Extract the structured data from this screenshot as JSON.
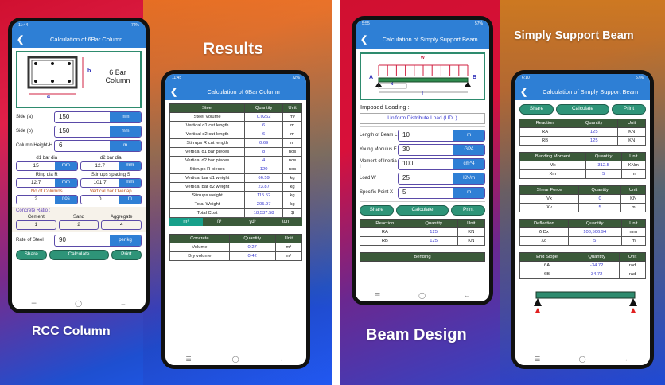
{
  "promo": {
    "results": "Results",
    "rcc": "RCC Column",
    "beam_design": "Beam Design",
    "ssb": "Simply Support Beam"
  },
  "phone1": {
    "status_time": "11:44",
    "battery": "72%",
    "title": "Calculation of 6Bar Column",
    "diagram": {
      "label": "6 Bar Column",
      "a": "a",
      "b": "b",
      "d1": "d1",
      "d2": "d2",
      "r": "R"
    },
    "side_a": {
      "label": "Side (a)",
      "value": "150",
      "unit": "mm"
    },
    "side_b": {
      "label": "Side (b)",
      "value": "150",
      "unit": "mm"
    },
    "height": {
      "label": "Column Height-H",
      "value": "6",
      "unit": "m"
    },
    "d1": {
      "label": "d1 bar dia",
      "value": "15",
      "unit": "mm"
    },
    "d2": {
      "label": "d2 bar dia",
      "value": "12.7",
      "unit": "mm"
    },
    "ring": {
      "label": "Ring dia R",
      "value": "12.7",
      "unit": "mm"
    },
    "stirrups": {
      "label": "Stirrups spacing S",
      "value": "101.7",
      "unit": "mm"
    },
    "columns": {
      "label": "No of Columns",
      "value": "2",
      "unit": "nos"
    },
    "overlap": {
      "label": "Vertical bar Overlap",
      "value": "0",
      "unit": "m"
    },
    "ratio": {
      "label": "Concrete Ratio :",
      "cement": "Cement",
      "sand": "Sand",
      "aggregate": "Aggregate",
      "cement_v": "1",
      "sand_v": "2",
      "aggregate_v": "4"
    },
    "rate": {
      "label": "Rate of Steel",
      "value": "90",
      "unit": "per kg"
    },
    "buttons": {
      "share": "Share",
      "calculate": "Calculate",
      "print": "Print"
    }
  },
  "phone2": {
    "status_time": "11:45",
    "battery": "72%",
    "title": "Calculation of 6Bar Column",
    "steel_headers": [
      "Steel",
      "Quantity",
      "Unit"
    ],
    "steel_rows": [
      [
        "Steel Volume",
        "0.0262",
        "m³"
      ],
      [
        "Vertical d1 cut length",
        "6",
        "m"
      ],
      [
        "Vertical d2 cut length",
        "6",
        "m"
      ],
      [
        "Stirrups R cut length",
        "0.69",
        "m"
      ],
      [
        "Vertical d1 bar pieces",
        "8",
        "nos"
      ],
      [
        "Vertical d2 bar pieces",
        "4",
        "nos"
      ],
      [
        "Stirrups R pieces",
        "120",
        "nos"
      ],
      [
        "Vertical bar d1 weight",
        "66.59",
        "kg"
      ],
      [
        "Vertical bar d2 weight",
        "23.87",
        "kg"
      ],
      [
        "Stirrups weight",
        "115.52",
        "kg"
      ],
      [
        "Total Weight",
        "205.97",
        "kg"
      ],
      [
        "Total Cost",
        "18,537.58",
        "$"
      ]
    ],
    "unit_tabs": [
      "m³",
      "ft³",
      "yd³",
      "ton"
    ],
    "concrete_headers": [
      "Concrete",
      "Quantity",
      "Unit"
    ],
    "concrete_rows": [
      [
        "Volume",
        "0.27",
        "m³"
      ],
      [
        "Dry volume",
        "0.42",
        "m³"
      ]
    ]
  },
  "phone3": {
    "status_time": "5:55",
    "battery": "57%",
    "title": "Calculation of Simply Support Beam",
    "diagram": {
      "w": "w",
      "a": "A",
      "b": "B",
      "x": "x",
      "l": "L"
    },
    "imposed_label": "Imposed Loading :",
    "imposed_value": "Uniform Distribute Load (UDL)",
    "inputs": [
      {
        "label": "Length of Beam L",
        "value": "10",
        "unit": "m"
      },
      {
        "label": "Young Modulus E",
        "value": "30",
        "unit": "GPA"
      },
      {
        "label": "Moment of Inertia I",
        "value": "100",
        "unit": "cm^4"
      },
      {
        "label": "Load W",
        "value": "25",
        "unit": "KN/m"
      },
      {
        "label": "Specific Point X",
        "value": "5",
        "unit": "m"
      }
    ],
    "buttons": {
      "share": "Share",
      "calculate": "Calculate",
      "print": "Print"
    },
    "reaction_headers": [
      "Reaction",
      "Quantity",
      "Unit"
    ],
    "reaction_rows": [
      [
        "RA",
        "125",
        "KN"
      ],
      [
        "RB",
        "125",
        "KN"
      ]
    ],
    "next_header": "Bending"
  },
  "phone4": {
    "status_time": "6:10",
    "battery": "57%",
    "title": "Calculation of Simply Support Beam",
    "buttons": {
      "share": "Share",
      "calculate": "Calculate",
      "print": "Print"
    },
    "tables": [
      {
        "headers": [
          "Reaction",
          "Quantity",
          "Unit"
        ],
        "rows": [
          [
            "RA",
            "125",
            "KN"
          ],
          [
            "RB",
            "125",
            "KN"
          ]
        ]
      },
      {
        "headers": [
          "Bending Moment",
          "Quantity",
          "Unit"
        ],
        "rows": [
          [
            "Mx",
            "312.5",
            "KNm"
          ],
          [
            "Xm",
            "5",
            "m"
          ]
        ]
      },
      {
        "headers": [
          "Shear Force",
          "Quantity",
          "Unit"
        ],
        "rows": [
          [
            "Vx",
            "0",
            "KN"
          ],
          [
            "Xv",
            "5",
            "m"
          ]
        ]
      },
      {
        "headers": [
          "Deflection",
          "Quantity",
          "Unit"
        ],
        "rows": [
          [
            "δ Dx",
            "108,506.94",
            "mm"
          ],
          [
            "Xd",
            "5",
            "m"
          ]
        ]
      },
      {
        "headers": [
          "End Slope",
          "Quantity",
          "Unit"
        ],
        "rows": [
          [
            "θA",
            "-34.72",
            "rad"
          ],
          [
            "θB",
            "34.72",
            "rad"
          ]
        ]
      }
    ]
  },
  "colors": {
    "header_blue": "#2e7fd5",
    "table_header": "#3b5a3a",
    "button_green": "#2e9478",
    "value_blue": "#3a3ad0"
  }
}
